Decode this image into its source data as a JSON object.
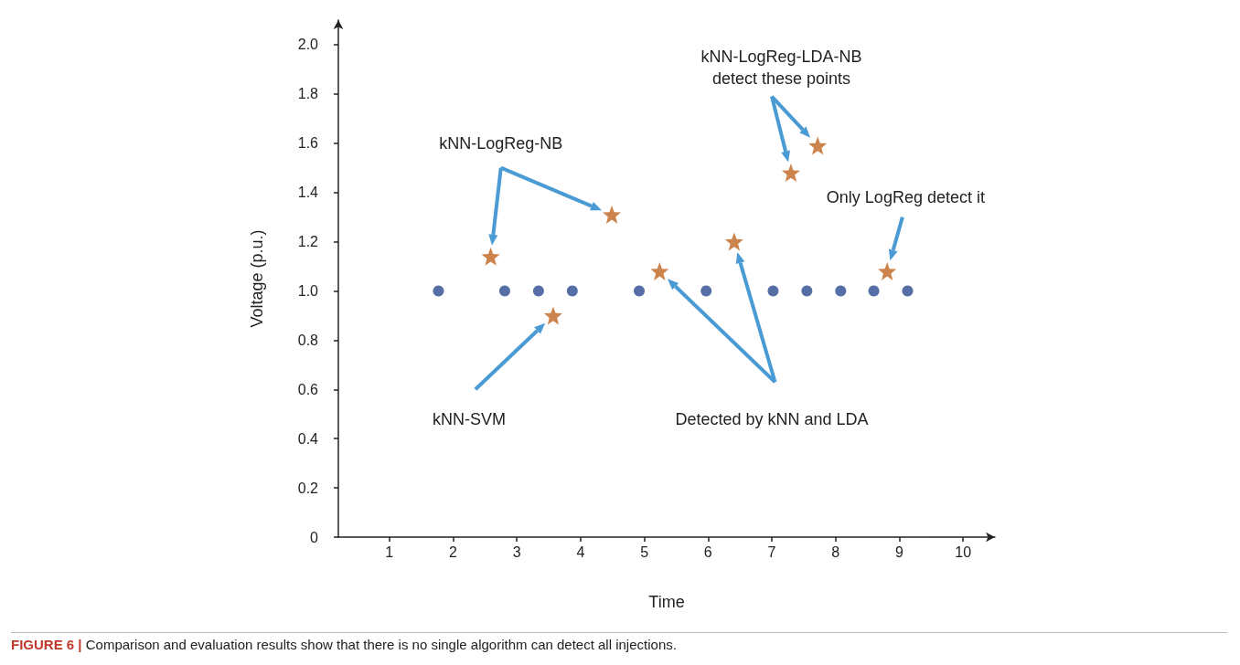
{
  "chart_data": {
    "type": "scatter",
    "xlabel": "Time",
    "ylabel": "Voltage (p.u.)",
    "xlim": [
      0.2,
      10.5
    ],
    "xticks": [
      1,
      2,
      3,
      4,
      5,
      6,
      7,
      8,
      9,
      10
    ],
    "ylim": [
      0,
      2.1
    ],
    "yticks": [
      0,
      0.2,
      0.4,
      0.6,
      0.8,
      {
        "value": 1,
        "label": "1.0"
      },
      1.2,
      1.4,
      1.6,
      1.8,
      {
        "value": 2,
        "label": "2.0"
      }
    ],
    "grid": false,
    "series": [
      {
        "color": "#2b4a8f",
        "marker": "circle",
        "x": [
          1.77,
          2.81,
          3.34,
          3.87,
          4.92,
          5.97,
          7.02,
          7.55,
          8.08,
          8.6,
          9.13
        ],
        "values": [
          1,
          1,
          1,
          1,
          1,
          1,
          1,
          1,
          1,
          1,
          1
        ]
      },
      {
        "color": "#c0651f",
        "marker": "star",
        "x": [
          2.59,
          4.49,
          3.57,
          5.24,
          6.41,
          7.3,
          7.72,
          8.81
        ],
        "values": [
          1.14,
          1.31,
          0.9,
          1.08,
          1.2,
          1.48,
          1.59,
          1.08
        ]
      }
    ],
    "annotations": [
      "kNN-LogReg-NB",
      "kNN-LogReg-LDA-NB detect these points",
      "Only LogReg detect it",
      "kNN-SVM",
      "Detected by kNN and LDA",
      "FIGURE 6 | Comparison and evaluation results show that there is no single algorithm can detect all injections."
    ]
  }
}
